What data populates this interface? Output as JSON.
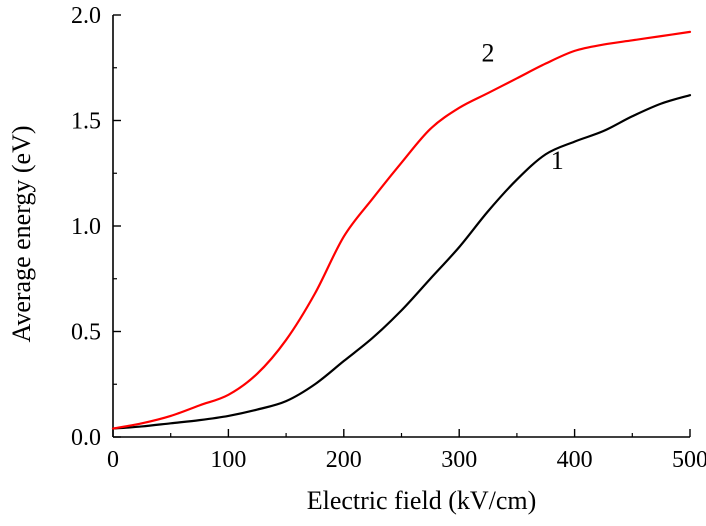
{
  "chart_data": {
    "type": "line",
    "title": "",
    "xlabel": "Electric field (kV/cm)",
    "ylabel": "Average energy (eV)",
    "xlim": [
      0,
      500
    ],
    "ylim": [
      0,
      2.0
    ],
    "x_ticks": [
      0,
      100,
      200,
      300,
      400,
      500
    ],
    "x_tick_labels": [
      "0",
      "100",
      "200",
      "300",
      "400",
      "500"
    ],
    "y_ticks": [
      0.0,
      0.5,
      1.0,
      1.5,
      2.0
    ],
    "y_tick_labels": [
      "0.0",
      "0.5",
      "1.0",
      "1.5",
      "2.0"
    ],
    "grid": false,
    "legend": "none",
    "series": [
      {
        "name": "1",
        "color": "#000000",
        "label_at": [
          385,
          1.27
        ],
        "x": [
          0,
          25,
          50,
          75,
          100,
          125,
          150,
          175,
          200,
          225,
          250,
          275,
          300,
          325,
          350,
          375,
          400,
          425,
          450,
          475,
          500
        ],
        "values": [
          0.04,
          0.05,
          0.065,
          0.08,
          0.1,
          0.13,
          0.17,
          0.25,
          0.36,
          0.47,
          0.6,
          0.75,
          0.9,
          1.07,
          1.22,
          1.34,
          1.4,
          1.45,
          1.52,
          1.58,
          1.62
        ]
      },
      {
        "name": "2",
        "color": "#ff0000",
        "label_at": [
          325,
          1.78
        ],
        "x": [
          0,
          25,
          50,
          75,
          100,
          125,
          150,
          175,
          200,
          225,
          250,
          275,
          300,
          325,
          350,
          375,
          400,
          425,
          450,
          475,
          500
        ],
        "values": [
          0.04,
          0.065,
          0.1,
          0.15,
          0.2,
          0.3,
          0.46,
          0.68,
          0.95,
          1.13,
          1.3,
          1.46,
          1.56,
          1.63,
          1.7,
          1.77,
          1.83,
          1.86,
          1.88,
          1.9,
          1.92
        ]
      }
    ]
  }
}
